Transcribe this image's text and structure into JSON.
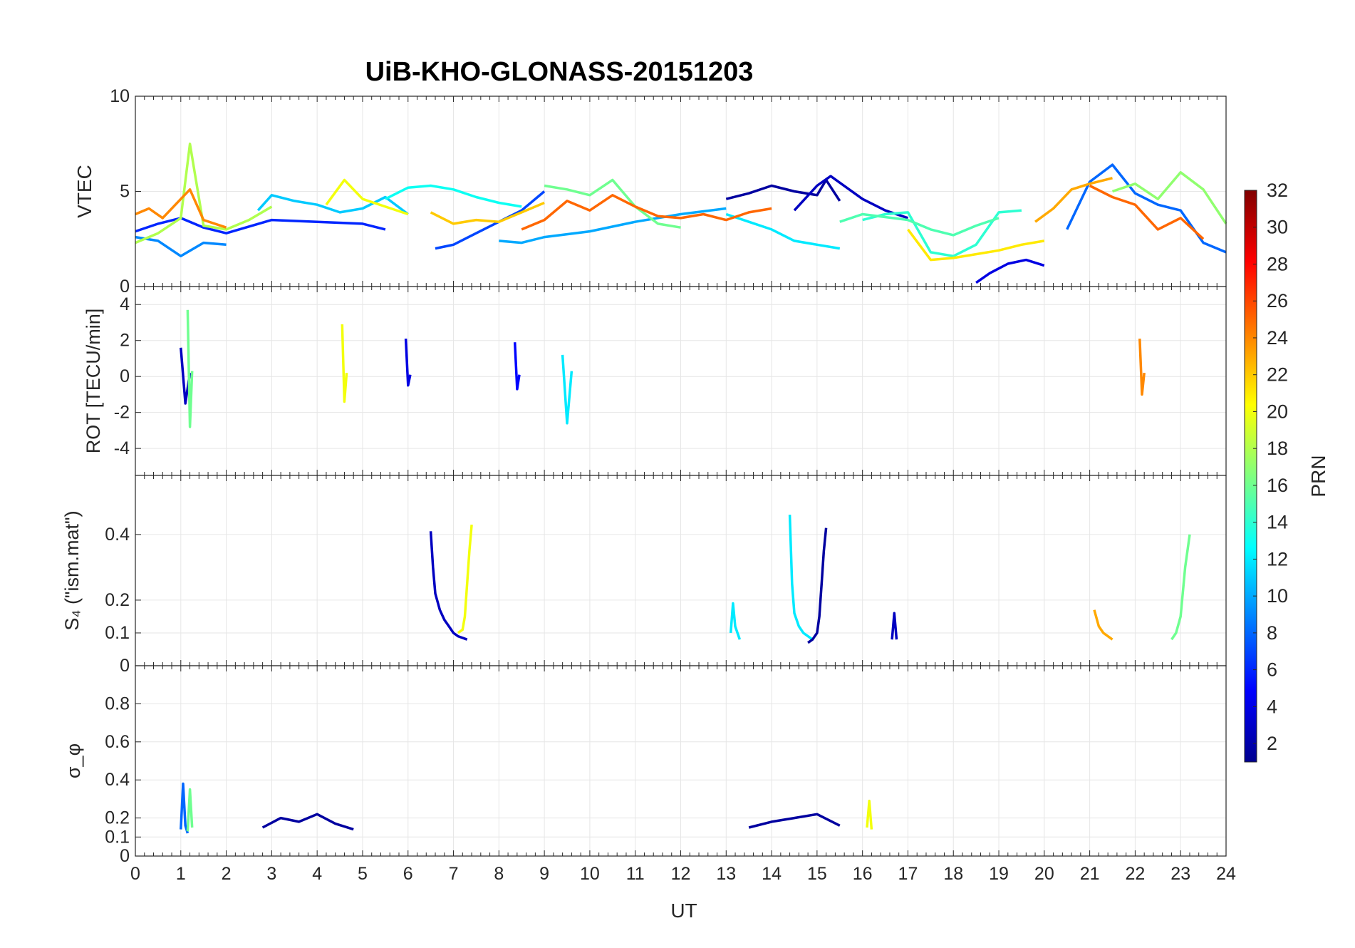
{
  "title": "UiB-KHO-GLONASS-20151203",
  "colorbar": {
    "label": "PRN",
    "ticks": [
      "2",
      "4",
      "6",
      "8",
      "10",
      "12",
      "14",
      "16",
      "18",
      "20",
      "22",
      "24",
      "26",
      "28",
      "30",
      "32"
    ],
    "range": [
      1,
      32
    ],
    "colormap": "jet"
  },
  "xaxis": {
    "label": "UT",
    "ticks": [
      "0",
      "1",
      "2",
      "3",
      "4",
      "5",
      "6",
      "7",
      "8",
      "9",
      "10",
      "11",
      "12",
      "13",
      "14",
      "15",
      "16",
      "17",
      "18",
      "19",
      "20",
      "21",
      "22",
      "23",
      "24"
    ],
    "range": [
      0,
      24
    ]
  },
  "chart_data": [
    {
      "type": "line",
      "panel": "VTEC",
      "ylabel": "VTEC",
      "ylim": [
        0,
        10
      ],
      "yticks": [
        "0",
        "5",
        "10"
      ],
      "series": [
        {
          "prn": 2,
          "x": [
            13.0,
            13.5,
            14.0,
            14.5,
            15.0,
            15.2,
            15.5
          ],
          "y": [
            4.6,
            4.9,
            5.3,
            5.0,
            4.8,
            5.6,
            4.5
          ]
        },
        {
          "prn": 3,
          "x": [
            14.5,
            15.0,
            15.3,
            16.0,
            16.5,
            17.0
          ],
          "y": [
            4.0,
            5.3,
            5.8,
            4.6,
            4.0,
            3.6
          ]
        },
        {
          "prn": 4,
          "x": [
            18.5,
            18.8,
            19.2,
            19.6,
            20.0
          ],
          "y": [
            0.2,
            0.7,
            1.2,
            1.4,
            1.1
          ]
        },
        {
          "prn": 6,
          "x": [
            0,
            0.5,
            1.0,
            1.5,
            2.0,
            3.0,
            4.0,
            5.0,
            5.5
          ],
          "y": [
            2.9,
            3.3,
            3.6,
            3.1,
            2.8,
            3.5,
            3.4,
            3.3,
            3.0
          ]
        },
        {
          "prn": 7,
          "x": [
            6.6,
            7.0,
            7.5,
            8.0,
            8.5,
            9.0
          ],
          "y": [
            2.0,
            2.2,
            2.8,
            3.4,
            4.0,
            5.0
          ]
        },
        {
          "prn": 8,
          "x": [
            20.5,
            21.0,
            21.5,
            22.0,
            22.5,
            23.0,
            23.5,
            24.0
          ],
          "y": [
            3.0,
            5.5,
            6.4,
            4.9,
            4.3,
            4.0,
            2.3,
            1.8
          ]
        },
        {
          "prn": 9,
          "x": [
            0,
            0.5,
            1.0,
            1.5,
            2.0
          ],
          "y": [
            2.6,
            2.4,
            1.6,
            2.3,
            2.2
          ]
        },
        {
          "prn": 10,
          "x": [
            8.0,
            8.5,
            9.0,
            10.0,
            11.0,
            12.0,
            13.0
          ],
          "y": [
            2.4,
            2.3,
            2.6,
            2.9,
            3.4,
            3.8,
            4.1
          ]
        },
        {
          "prn": 11,
          "x": [
            2.7,
            3.0,
            3.5,
            4.0,
            4.5,
            5.0,
            5.5,
            6.0
          ],
          "y": [
            4.0,
            4.8,
            4.5,
            4.3,
            3.9,
            4.1,
            4.7,
            3.8
          ]
        },
        {
          "prn": 12,
          "x": [
            13.0,
            13.5,
            14.0,
            14.5,
            15.0,
            15.5
          ],
          "y": [
            3.8,
            3.4,
            3.0,
            2.4,
            2.2,
            2.0
          ]
        },
        {
          "prn": 13,
          "x": [
            5.5,
            6.0,
            6.5,
            7.0,
            7.5,
            8.0,
            8.5
          ],
          "y": [
            4.6,
            5.2,
            5.3,
            5.1,
            4.7,
            4.4,
            4.2
          ]
        },
        {
          "prn": 14,
          "x": [
            16.0,
            16.5,
            17.0,
            17.5,
            18.0,
            18.5,
            19.0,
            19.5
          ],
          "y": [
            3.5,
            3.8,
            3.9,
            1.8,
            1.6,
            2.2,
            3.9,
            4.0
          ]
        },
        {
          "prn": 15,
          "x": [
            15.5,
            16.0,
            17.0,
            17.5,
            18.0,
            18.5,
            19.0
          ],
          "y": [
            3.4,
            3.8,
            3.5,
            3.0,
            2.7,
            3.2,
            3.6
          ]
        },
        {
          "prn": 16,
          "x": [
            9.0,
            9.5,
            10.0,
            10.5,
            11.0,
            11.5,
            12.0
          ],
          "y": [
            5.3,
            5.1,
            4.8,
            5.6,
            4.2,
            3.3,
            3.1
          ]
        },
        {
          "prn": 17,
          "x": [
            21.5,
            22.0,
            22.5,
            23.0,
            23.5,
            24.0
          ],
          "y": [
            5.0,
            5.4,
            4.6,
            6.0,
            5.1,
            3.3
          ]
        },
        {
          "prn": 18,
          "x": [
            0,
            0.5,
            1.0,
            1.2,
            1.5,
            2.0,
            2.5,
            3.0
          ],
          "y": [
            2.3,
            2.8,
            3.6,
            7.5,
            3.2,
            3.0,
            3.5,
            4.2
          ]
        },
        {
          "prn": 20,
          "x": [
            4.2,
            4.6,
            5.0,
            5.5,
            6.0
          ],
          "y": [
            4.3,
            5.6,
            4.6,
            4.2,
            3.8
          ]
        },
        {
          "prn": 21,
          "x": [
            17.0,
            17.5,
            18.0,
            19.0,
            19.5,
            20.0
          ],
          "y": [
            3.0,
            1.4,
            1.5,
            1.9,
            2.2,
            2.4
          ]
        },
        {
          "prn": 22,
          "x": [
            6.5,
            7.0,
            7.5,
            8.0,
            8.5,
            9.0
          ],
          "y": [
            3.9,
            3.3,
            3.5,
            3.4,
            3.9,
            4.4
          ]
        },
        {
          "prn": 23,
          "x": [
            19.8,
            20.2,
            20.6,
            21.0,
            21.5
          ],
          "y": [
            3.4,
            4.1,
            5.1,
            5.4,
            5.7
          ]
        },
        {
          "prn": 24,
          "x": [
            0,
            0.3,
            0.6,
            1.0,
            1.2,
            1.5,
            2.0
          ],
          "y": [
            3.8,
            4.1,
            3.6,
            4.6,
            5.1,
            3.5,
            3.1
          ]
        },
        {
          "prn": 25,
          "x": [
            8.5,
            9.0,
            9.5,
            10.0,
            10.5,
            11.0,
            11.5,
            12.0,
            12.5,
            13.0,
            13.5,
            14.0
          ],
          "y": [
            3.0,
            3.5,
            4.5,
            4.0,
            4.8,
            4.2,
            3.7,
            3.6,
            3.8,
            3.5,
            3.9,
            4.1
          ]
        },
        {
          "prn": 25,
          "x": [
            21.0,
            21.5,
            22.0,
            22.5,
            23.0,
            23.5
          ],
          "y": [
            5.3,
            4.7,
            4.3,
            3.0,
            3.6,
            2.5
          ]
        }
      ]
    },
    {
      "type": "line",
      "panel": "ROT",
      "ylabel": "ROT [TECU/min]",
      "ylim": [
        -5.5,
        5
      ],
      "yticks": [
        "-4",
        "-2",
        "0",
        "2",
        "4"
      ],
      "series": [
        {
          "prn": 3,
          "x": [
            1.0,
            1.1,
            1.2
          ],
          "y": [
            1.6,
            -1.5,
            0.2
          ]
        },
        {
          "prn": 16,
          "x": [
            1.15,
            1.2,
            1.25
          ],
          "y": [
            3.7,
            -2.8,
            0.3
          ]
        },
        {
          "prn": 20,
          "x": [
            4.55,
            4.6,
            4.65
          ],
          "y": [
            2.9,
            -1.4,
            0.2
          ]
        },
        {
          "prn": 4,
          "x": [
            5.95,
            6.0,
            6.05
          ],
          "y": [
            2.1,
            -0.5,
            0.1
          ]
        },
        {
          "prn": 5,
          "x": [
            8.35,
            8.4,
            8.45
          ],
          "y": [
            1.9,
            -0.7,
            0.1
          ]
        },
        {
          "prn": 12,
          "x": [
            9.4,
            9.5,
            9.6
          ],
          "y": [
            1.2,
            -2.6,
            0.3
          ]
        },
        {
          "prn": 24,
          "x": [
            22.1,
            22.15,
            22.2
          ],
          "y": [
            2.1,
            -1.0,
            0.2
          ]
        }
      ]
    },
    {
      "type": "line",
      "panel": "S4",
      "ylabel": "S₄ (\"ism.mat\")",
      "ylim": [
        0,
        0.58
      ],
      "yticks": [
        "0",
        "0.1",
        "0.2",
        "0.4"
      ],
      "series": [
        {
          "prn": 3,
          "x": [
            6.5,
            6.55,
            6.6,
            6.7,
            6.8,
            6.9,
            7.0,
            7.1,
            7.3
          ],
          "y": [
            0.41,
            0.3,
            0.22,
            0.17,
            0.14,
            0.12,
            0.1,
            0.09,
            0.08
          ]
        },
        {
          "prn": 20,
          "x": [
            7.1,
            7.2,
            7.25,
            7.3,
            7.35,
            7.4
          ],
          "y": [
            0.1,
            0.11,
            0.15,
            0.25,
            0.35,
            0.43
          ]
        },
        {
          "prn": 12,
          "x": [
            14.4,
            14.45,
            14.5,
            14.6,
            14.7,
            14.8,
            14.9
          ],
          "y": [
            0.46,
            0.25,
            0.16,
            0.12,
            0.1,
            0.09,
            0.08
          ]
        },
        {
          "prn": 2,
          "x": [
            14.8,
            14.9,
            15.0,
            15.05,
            15.1,
            15.15,
            15.2
          ],
          "y": [
            0.07,
            0.08,
            0.1,
            0.15,
            0.25,
            0.35,
            0.42
          ]
        },
        {
          "prn": 16,
          "x": [
            22.8,
            22.9,
            23.0,
            23.1,
            23.2
          ],
          "y": [
            0.08,
            0.1,
            0.15,
            0.3,
            0.4
          ]
        },
        {
          "prn": 12,
          "x": [
            13.1,
            13.15,
            13.2,
            13.3
          ],
          "y": [
            0.1,
            0.19,
            0.12,
            0.08
          ]
        },
        {
          "prn": 23,
          "x": [
            21.1,
            21.2,
            21.3,
            21.5
          ],
          "y": [
            0.17,
            0.12,
            0.1,
            0.08
          ]
        },
        {
          "prn": 3,
          "x": [
            16.65,
            16.7,
            16.75
          ],
          "y": [
            0.08,
            0.16,
            0.08
          ]
        }
      ]
    },
    {
      "type": "line",
      "panel": "sigma_phi",
      "ylabel": "σ_φ",
      "ylim": [
        0,
        1
      ],
      "yticks": [
        "0",
        "0.1",
        "0.2",
        "0.4",
        "0.6",
        "0.8"
      ],
      "series": [
        {
          "prn": 8,
          "x": [
            1.0,
            1.05,
            1.1,
            1.15
          ],
          "y": [
            0.14,
            0.38,
            0.16,
            0.12
          ]
        },
        {
          "prn": 16,
          "x": [
            1.15,
            1.2,
            1.25
          ],
          "y": [
            0.13,
            0.35,
            0.15
          ]
        },
        {
          "prn": 20,
          "x": [
            16.1,
            16.15,
            16.2
          ],
          "y": [
            0.15,
            0.29,
            0.14
          ]
        },
        {
          "prn": 2,
          "x": [
            2.8,
            3.2,
            3.6,
            4.0,
            4.4,
            4.8
          ],
          "y": [
            0.15,
            0.2,
            0.18,
            0.22,
            0.17,
            0.14
          ]
        },
        {
          "prn": 2,
          "x": [
            13.5,
            14.0,
            14.5,
            15.0,
            15.5
          ],
          "y": [
            0.15,
            0.18,
            0.2,
            0.22,
            0.16
          ]
        }
      ]
    }
  ]
}
